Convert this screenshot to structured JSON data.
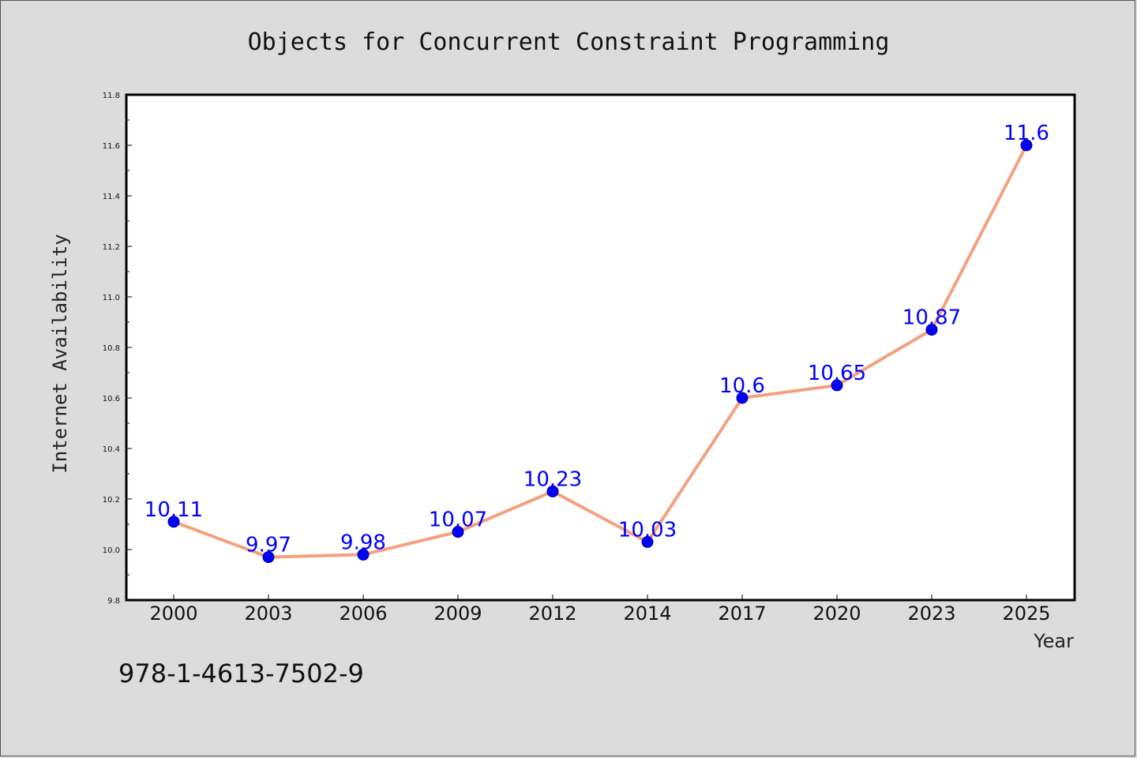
{
  "chart_data": {
    "type": "line",
    "title": "Objects for Concurrent Constraint Programming",
    "xlabel": "Year",
    "ylabel": "Internet Availability",
    "categories": [
      "2000",
      "2003",
      "2006",
      "2009",
      "2012",
      "2014",
      "2017",
      "2020",
      "2023",
      "2025"
    ],
    "values": [
      10.11,
      9.97,
      9.98,
      10.07,
      10.23,
      10.03,
      10.6,
      10.65,
      10.87,
      11.6
    ],
    "data_labels": [
      "10.11",
      "9.97",
      "9.98",
      "10.07",
      "10.23",
      "10.03",
      "10.6",
      "10.65",
      "10.87",
      "11.6"
    ],
    "ylim": [
      9.8,
      11.8
    ],
    "yticks": [
      "9.8",
      "10.0",
      "10.2",
      "10.4",
      "10.6",
      "10.8",
      "11.0",
      "11.2",
      "11.4",
      "11.6",
      "11.8"
    ],
    "grid": false,
    "legend": "none",
    "colors": {
      "line": "#f4a07e",
      "marker": "#0000ff",
      "label": "#0000ff",
      "background": "#dcdcdc",
      "plot_background": "#ffffff"
    }
  },
  "footnote": "978-1-4613-7502-9"
}
